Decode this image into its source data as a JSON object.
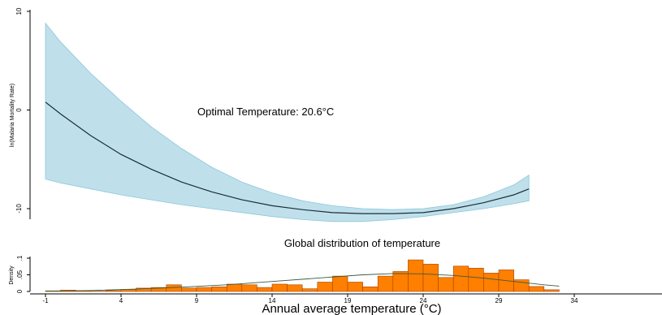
{
  "chart_data": [
    {
      "type": "line",
      "annotation": "Optimal Temperature: 20.6°C",
      "ylabel": "ln(Malaria Mortality Rate)",
      "yticks": [
        "10",
        "0",
        "-10"
      ],
      "ylim": [
        -12,
        10
      ],
      "xlim": [
        -1,
        34
      ],
      "grid": false,
      "colors": {
        "band": "#bfe0ea",
        "band_edge": "#8cc6dc",
        "line": "#1b2d3b"
      },
      "series": [
        {
          "x": [
            -1,
            0,
            2,
            4,
            6,
            8,
            10,
            12,
            14,
            16,
            18,
            20,
            22,
            24,
            26,
            28,
            30,
            31
          ],
          "y": [
            0.8,
            -0.4,
            -2.6,
            -4.5,
            -6.0,
            -7.3,
            -8.3,
            -9.1,
            -9.7,
            -10.1,
            -10.4,
            -10.5,
            -10.5,
            -10.4,
            -10.0,
            -9.4,
            -8.6,
            -8.0
          ],
          "lower": [
            -7.0,
            -7.4,
            -8.0,
            -8.6,
            -9.1,
            -9.6,
            -10.0,
            -10.4,
            -10.8,
            -11.1,
            -11.3,
            -11.3,
            -11.1,
            -10.8,
            -10.4,
            -10.0,
            -9.5,
            -9.2
          ],
          "upper": [
            8.8,
            6.9,
            3.7,
            0.9,
            -1.7,
            -3.9,
            -5.8,
            -7.3,
            -8.4,
            -9.2,
            -9.7,
            -10.0,
            -10.1,
            -10.0,
            -9.6,
            -8.8,
            -7.6,
            -6.6
          ]
        }
      ]
    },
    {
      "type": "bar",
      "title": "Global distribution of temperature",
      "ylabel": "Density",
      "yticks": [
        ".1",
        ".05",
        "0"
      ],
      "ylim": [
        0,
        0.11
      ],
      "xlabel": "Annual average temperature (°C)",
      "xticks": [
        "-1",
        "4",
        "9",
        "14",
        "19",
        "24",
        "29",
        "34"
      ],
      "xlim": [
        -1,
        39
      ],
      "bin_width": 1,
      "colors": {
        "bar": "#ff7f00",
        "bar_edge": "#a24500",
        "curve": "#3a5a40"
      },
      "bins_start": [
        -1,
        0,
        1,
        2,
        3,
        4,
        5,
        6,
        7,
        8,
        9,
        10,
        11,
        12,
        13,
        14,
        15,
        16,
        17,
        18,
        19,
        20,
        21,
        22,
        23,
        24,
        25,
        26,
        27,
        28,
        29,
        30,
        31,
        32
      ],
      "values": [
        0.002,
        0.004,
        0.002,
        0.001,
        0.003,
        0.006,
        0.01,
        0.012,
        0.02,
        0.01,
        0.012,
        0.014,
        0.022,
        0.02,
        0.012,
        0.022,
        0.02,
        0.008,
        0.028,
        0.046,
        0.028,
        0.014,
        0.046,
        0.06,
        0.095,
        0.082,
        0.042,
        0.076,
        0.07,
        0.055,
        0.065,
        0.035,
        0.015,
        0.005
      ],
      "density_curve": {
        "x": [
          -1,
          2,
          5,
          8,
          11,
          14,
          17,
          20,
          22,
          24,
          26,
          28,
          30,
          32,
          33
        ],
        "y": [
          0.001,
          0.003,
          0.007,
          0.013,
          0.02,
          0.03,
          0.04,
          0.05,
          0.054,
          0.053,
          0.048,
          0.04,
          0.03,
          0.02,
          0.016
        ]
      }
    }
  ]
}
